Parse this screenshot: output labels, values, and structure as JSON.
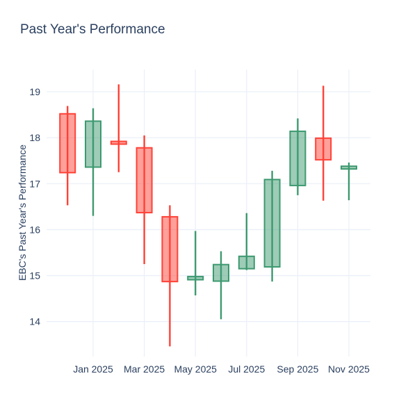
{
  "figure": {
    "background_color": "#ffffff",
    "text_color": "#2a3f5f",
    "grid_color": "#ebf0f8"
  },
  "chart_data": {
    "type": "candlestick",
    "title": "Past Year's Performance",
    "xlabel": "",
    "ylabel": "EBC's Past Year's Performance",
    "legend_position": "none",
    "grid": true,
    "y_ticks": [
      14,
      15,
      16,
      17,
      18,
      19
    ],
    "ylim": [
      13.24,
      19.48
    ],
    "x_tick_labels": [
      "Jan 2025",
      "Mar 2025",
      "May 2025",
      "Jul 2025",
      "Sep 2025",
      "Nov 2025"
    ],
    "x_tick_indices": [
      1,
      3,
      5,
      7,
      9,
      11
    ],
    "categories": [
      "Dec 2024",
      "Jan 2025",
      "Feb 2025",
      "Mar 2025",
      "Apr 2025",
      "May 2025",
      "Jun 2025",
      "Jul 2025",
      "Aug 2025",
      "Sep 2025",
      "Oct 2025",
      "Nov 2025"
    ],
    "candles": [
      {
        "x": "Dec 2024",
        "open": 18.52,
        "high": 18.69,
        "low": 16.53,
        "close": 17.24
      },
      {
        "x": "Jan 2025",
        "open": 17.36,
        "high": 18.64,
        "low": 16.3,
        "close": 18.36
      },
      {
        "x": "Feb 2025",
        "open": 17.92,
        "high": 19.16,
        "low": 17.25,
        "close": 17.86
      },
      {
        "x": "Mar 2025",
        "open": 17.78,
        "high": 18.05,
        "low": 15.25,
        "close": 16.37
      },
      {
        "x": "Apr 2025",
        "open": 16.28,
        "high": 16.53,
        "low": 13.46,
        "close": 14.87
      },
      {
        "x": "May 2025",
        "open": 14.91,
        "high": 15.97,
        "low": 14.57,
        "close": 14.98
      },
      {
        "x": "Jun 2025",
        "open": 14.88,
        "high": 15.53,
        "low": 14.05,
        "close": 15.24
      },
      {
        "x": "Jul 2025",
        "open": 15.15,
        "high": 16.36,
        "low": 15.12,
        "close": 15.42
      },
      {
        "x": "Aug 2025",
        "open": 15.19,
        "high": 17.28,
        "low": 14.87,
        "close": 17.09
      },
      {
        "x": "Sep 2025",
        "open": 16.96,
        "high": 18.42,
        "low": 16.75,
        "close": 18.14
      },
      {
        "x": "Oct 2025",
        "open": 17.99,
        "high": 19.13,
        "low": 16.63,
        "close": 17.52
      },
      {
        "x": "Nov 2025",
        "open": 17.32,
        "high": 17.46,
        "low": 16.64,
        "close": 17.38
      }
    ],
    "colors": {
      "increasing_line": "#3d9970",
      "increasing_fill": "rgba(61,153,112,0.5)",
      "decreasing_line": "#ff4136",
      "decreasing_fill": "rgba(255,65,54,0.5)"
    }
  }
}
